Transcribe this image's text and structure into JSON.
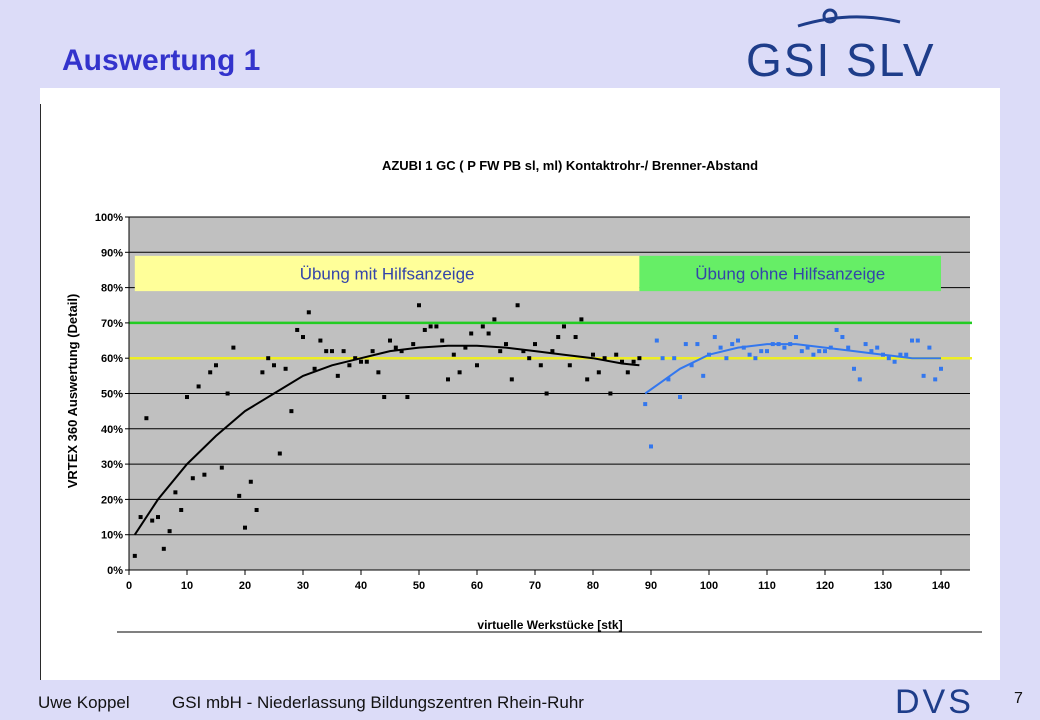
{
  "slide": {
    "title": "Auswertung 1",
    "logo_text": "GSI SLV",
    "footer_author": "Uwe Koppel",
    "footer_org": "GSI mbH - Niederlassung Bildungszentren Rhein-Ruhr",
    "page_number": "7",
    "dvs_logo_text": "DVS",
    "colors": {
      "title": "#3333cc",
      "logo": "#1e3d8a",
      "background": "#dcdcf8"
    }
  },
  "chart_data": {
    "type": "scatter",
    "title": "AZUBI 1 GC ( P FW PB sl, ml) Kontaktrohr-/ Brenner-Abstand",
    "xlabel": "virtuelle Werkstücke [stk]",
    "ylabel": "VRTEX 360 Auswertung (Detail)",
    "xlim": [
      0,
      145
    ],
    "ylim": [
      0,
      100
    ],
    "x_ticks": [
      "0",
      "10",
      "20",
      "30",
      "40",
      "50",
      "60",
      "70",
      "80",
      "90",
      "100",
      "110",
      "120",
      "130",
      "140"
    ],
    "y_ticks": [
      "0%",
      "10%",
      "20%",
      "30%",
      "40%",
      "50%",
      "60%",
      "70%",
      "80%",
      "90%",
      "100%"
    ],
    "grid": true,
    "plot_background": "#c0c0c0",
    "bands": [
      {
        "label": "Übung mit Hilfsanzeige",
        "x_range": [
          1,
          88
        ],
        "y_range": [
          79,
          89
        ],
        "color": "#ffff99"
      },
      {
        "label": "Übung ohne Hilfsanzeige",
        "x_range": [
          88,
          140
        ],
        "y_range": [
          79,
          89
        ],
        "color": "#66ee66"
      }
    ],
    "reference_lines": [
      {
        "y": 70,
        "color": "#22cc22"
      },
      {
        "y": 60,
        "color": "#eeee22"
      }
    ],
    "series": [
      {
        "color": "#000000",
        "points": [
          [
            1,
            4
          ],
          [
            2,
            15
          ],
          [
            3,
            43
          ],
          [
            4,
            14
          ],
          [
            5,
            15
          ],
          [
            6,
            6
          ],
          [
            7,
            11
          ],
          [
            8,
            22
          ],
          [
            9,
            17
          ],
          [
            10,
            49
          ],
          [
            11,
            26
          ],
          [
            12,
            52
          ],
          [
            13,
            27
          ],
          [
            14,
            56
          ],
          [
            15,
            58
          ],
          [
            16,
            29
          ],
          [
            17,
            50
          ],
          [
            18,
            63
          ],
          [
            19,
            21
          ],
          [
            20,
            12
          ],
          [
            21,
            25
          ],
          [
            22,
            17
          ],
          [
            23,
            56
          ],
          [
            24,
            60
          ],
          [
            25,
            58
          ],
          [
            26,
            33
          ],
          [
            27,
            57
          ],
          [
            28,
            45
          ],
          [
            29,
            68
          ],
          [
            30,
            66
          ],
          [
            31,
            73
          ],
          [
            32,
            57
          ],
          [
            33,
            65
          ],
          [
            34,
            62
          ],
          [
            35,
            62
          ],
          [
            36,
            55
          ],
          [
            37,
            62
          ],
          [
            38,
            58
          ],
          [
            39,
            60
          ],
          [
            40,
            59
          ],
          [
            41,
            59
          ],
          [
            42,
            62
          ],
          [
            43,
            56
          ],
          [
            44,
            49
          ],
          [
            45,
            65
          ],
          [
            46,
            63
          ],
          [
            47,
            62
          ],
          [
            48,
            49
          ],
          [
            49,
            64
          ],
          [
            50,
            75
          ],
          [
            51,
            68
          ],
          [
            52,
            69
          ],
          [
            53,
            69
          ],
          [
            54,
            65
          ],
          [
            55,
            54
          ],
          [
            56,
            61
          ],
          [
            57,
            56
          ],
          [
            58,
            63
          ],
          [
            59,
            67
          ],
          [
            60,
            58
          ],
          [
            61,
            69
          ],
          [
            62,
            67
          ],
          [
            63,
            71
          ],
          [
            64,
            62
          ],
          [
            65,
            64
          ],
          [
            66,
            54
          ],
          [
            67,
            75
          ],
          [
            68,
            62
          ],
          [
            69,
            60
          ],
          [
            70,
            64
          ],
          [
            71,
            58
          ],
          [
            72,
            50
          ],
          [
            73,
            62
          ],
          [
            74,
            66
          ],
          [
            75,
            69
          ],
          [
            76,
            58
          ],
          [
            77,
            66
          ],
          [
            78,
            71
          ],
          [
            79,
            54
          ],
          [
            80,
            61
          ],
          [
            81,
            56
          ],
          [
            82,
            60
          ],
          [
            83,
            50
          ],
          [
            84,
            61
          ],
          [
            85,
            59
          ],
          [
            86,
            56
          ],
          [
            87,
            59
          ],
          [
            88,
            60
          ]
        ],
        "trend": [
          [
            1,
            10
          ],
          [
            5,
            20
          ],
          [
            10,
            30
          ],
          [
            15,
            38
          ],
          [
            20,
            45
          ],
          [
            25,
            50
          ],
          [
            30,
            55
          ],
          [
            35,
            58
          ],
          [
            40,
            60
          ],
          [
            45,
            62
          ],
          [
            50,
            63
          ],
          [
            55,
            63.5
          ],
          [
            60,
            63.5
          ],
          [
            65,
            63
          ],
          [
            70,
            62
          ],
          [
            75,
            61
          ],
          [
            80,
            60
          ],
          [
            85,
            58.5
          ],
          [
            88,
            58
          ]
        ]
      },
      {
        "color": "#3377ee",
        "points": [
          [
            89,
            47
          ],
          [
            90,
            35
          ],
          [
            91,
            65
          ],
          [
            92,
            60
          ],
          [
            93,
            54
          ],
          [
            94,
            60
          ],
          [
            95,
            49
          ],
          [
            96,
            64
          ],
          [
            97,
            58
          ],
          [
            98,
            64
          ],
          [
            99,
            55
          ],
          [
            100,
            61
          ],
          [
            101,
            66
          ],
          [
            102,
            63
          ],
          [
            103,
            60
          ],
          [
            104,
            64
          ],
          [
            105,
            65
          ],
          [
            106,
            63
          ],
          [
            107,
            61
          ],
          [
            108,
            60
          ],
          [
            109,
            62
          ],
          [
            110,
            62
          ],
          [
            111,
            64
          ],
          [
            112,
            64
          ],
          [
            113,
            63
          ],
          [
            114,
            64
          ],
          [
            115,
            66
          ],
          [
            116,
            62
          ],
          [
            117,
            63
          ],
          [
            118,
            61
          ],
          [
            119,
            62
          ],
          [
            120,
            62
          ],
          [
            121,
            63
          ],
          [
            122,
            68
          ],
          [
            123,
            66
          ],
          [
            124,
            63
          ],
          [
            125,
            57
          ],
          [
            126,
            54
          ],
          [
            127,
            64
          ],
          [
            128,
            62
          ],
          [
            129,
            63
          ],
          [
            130,
            61
          ],
          [
            131,
            60
          ],
          [
            132,
            59
          ],
          [
            133,
            61
          ],
          [
            134,
            61
          ],
          [
            135,
            65
          ],
          [
            136,
            65
          ],
          [
            137,
            55
          ],
          [
            138,
            63
          ],
          [
            139,
            54
          ],
          [
            140,
            57
          ]
        ],
        "trend": [
          [
            89,
            50
          ],
          [
            95,
            57
          ],
          [
            100,
            61
          ],
          [
            105,
            63
          ],
          [
            110,
            64
          ],
          [
            115,
            64
          ],
          [
            120,
            63
          ],
          [
            125,
            62
          ],
          [
            130,
            61
          ],
          [
            135,
            60
          ],
          [
            140,
            60
          ]
        ]
      }
    ]
  }
}
